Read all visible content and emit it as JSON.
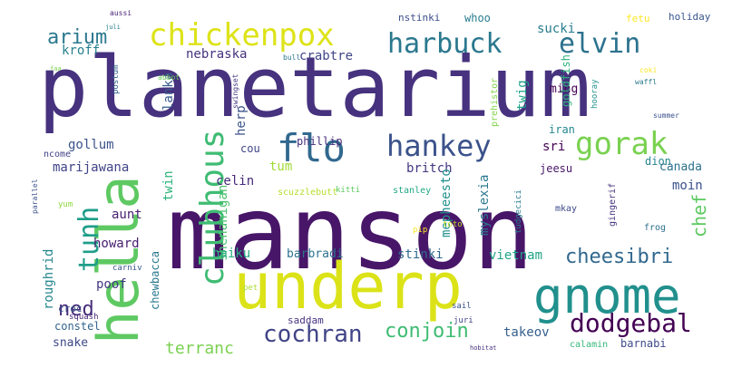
{
  "words": [
    {
      "text": "planetarium",
      "color": "#46327e"
    },
    {
      "text": "manson",
      "color": "#481668"
    },
    {
      "text": "underp",
      "color": "#dbe318"
    },
    {
      "text": "hella",
      "color": "#5ec962"
    },
    {
      "text": "gnome",
      "color": "#21908d"
    },
    {
      "text": "clubhous",
      "color": "#3fbc73"
    },
    {
      "text": "chickenpox",
      "color": "#dde318"
    },
    {
      "text": "harbuck",
      "color": "#2a788e"
    },
    {
      "text": "elvin",
      "color": "#2c728e"
    },
    {
      "text": "hankey",
      "color": "#3b528b"
    },
    {
      "text": "gorak",
      "color": "#7ad151"
    },
    {
      "text": "flo",
      "color": "#31688e"
    },
    {
      "text": "dodgebal",
      "color": "#440154"
    },
    {
      "text": "cochran",
      "color": "#414487"
    },
    {
      "text": "tunh",
      "color": "#1f9e89"
    },
    {
      "text": "arium",
      "color": "#2a788e"
    },
    {
      "text": "conjoin",
      "color": "#3fbc73"
    },
    {
      "text": "cheesibri",
      "color": "#31688e"
    },
    {
      "text": "ned",
      "color": "#472d7b"
    },
    {
      "text": "chef",
      "color": "#5ec962"
    },
    {
      "text": "terranc",
      "color": "#7ad151"
    },
    {
      "text": "kroff",
      "color": "#27808e"
    },
    {
      "text": "nebraska",
      "color": "#46327e"
    },
    {
      "text": "crabtre",
      "color": "#404688"
    },
    {
      "text": "sucki",
      "color": "#287c8e"
    },
    {
      "text": "lanka",
      "color": "#375a8c"
    },
    {
      "text": "herp",
      "color": "#3b528b"
    },
    {
      "text": "twin",
      "color": "#2eb37c"
    },
    {
      "text": "twig",
      "color": "#1fa188"
    },
    {
      "text": "ming",
      "color": "#440154"
    },
    {
      "text": "goldfish",
      "color": "#2db27d"
    },
    {
      "text": "gollum",
      "color": "#3b528b"
    },
    {
      "text": "cou",
      "color": "#404688"
    },
    {
      "text": "tum",
      "color": "#a2da37"
    },
    {
      "text": "phillip",
      "color": "#472d7b"
    },
    {
      "text": "sri",
      "color": "#440154"
    },
    {
      "text": "iran",
      "color": "#24868e"
    },
    {
      "text": "marijawana",
      "color": "#414487"
    },
    {
      "text": "celin",
      "color": "#472a7a"
    },
    {
      "text": "shenanigan",
      "color": "#4ac16d"
    },
    {
      "text": "britch",
      "color": "#453781"
    },
    {
      "text": "mepheesto",
      "color": "#21918c"
    },
    {
      "text": "myslexia",
      "color": "#2a788e"
    },
    {
      "text": "jeesu",
      "color": "#481769"
    },
    {
      "text": "dion",
      "color": "#25848e"
    },
    {
      "text": "canada",
      "color": "#2d718e"
    },
    {
      "text": "moin",
      "color": "#3b518b"
    },
    {
      "text": "aunt",
      "color": "#482173"
    },
    {
      "text": "howard",
      "color": "#482071"
    },
    {
      "text": "haiku",
      "color": "#25ac82"
    },
    {
      "text": "barbradi",
      "color": "#2c728e"
    },
    {
      "text": "stinki",
      "color": "#30698e"
    },
    {
      "text": "vietnam",
      "color": "#20a486"
    },
    {
      "text": "poof",
      "color": "#453882"
    },
    {
      "text": "roughrid",
      "color": "#24868e"
    },
    {
      "text": "chewbacca",
      "color": "#2a778e"
    },
    {
      "text": "constel",
      "color": "#33638d"
    },
    {
      "text": "snake",
      "color": "#3e4989"
    },
    {
      "text": "takeov",
      "color": "#355f8d"
    },
    {
      "text": "barnabi",
      "color": "#3e4a89"
    },
    {
      "text": "saddam",
      "color": "#46337f"
    },
    {
      "text": "calamin",
      "color": "#35b779"
    },
    {
      "text": "croc",
      "color": "#39568c"
    },
    {
      "text": "squash",
      "color": "#482979"
    },
    {
      "text": "whoo",
      "color": "#287d8e"
    },
    {
      "text": "nstinki",
      "color": "#3d4e8a"
    },
    {
      "text": "fetu",
      "color": "#fde725"
    },
    {
      "text": "holiday",
      "color": "#39568c"
    },
    {
      "text": "hooray",
      "color": "#21918c"
    },
    {
      "text": "prehistor",
      "color": "#84d44b"
    },
    {
      "text": "postum",
      "color": "#33628d"
    },
    {
      "text": "bull",
      "color": "#2a788e"
    },
    {
      "text": "ncome",
      "color": "#424186"
    },
    {
      "text": "scuzzlebutt",
      "color": "#b5de2b"
    },
    {
      "text": "kitti",
      "color": "#5ec962"
    },
    {
      "text": "stanley",
      "color": "#22a884"
    },
    {
      "text": "tudgecici",
      "color": "#297b8e"
    },
    {
      "text": "gingerif",
      "color": "#46337f"
    },
    {
      "text": "frog",
      "color": "#2d708e"
    },
    {
      "text": "mkay",
      "color": "#3e4989"
    },
    {
      "text": "toto",
      "color": "#c2df23"
    },
    {
      "text": "pip",
      "color": "#fde725"
    },
    {
      "text": "juri",
      "color": "#414487"
    },
    {
      "text": "sail",
      "color": "#3b528b"
    },
    {
      "text": "hobitat",
      "color": "#46327e"
    },
    {
      "text": "pet",
      "color": "#addc30"
    },
    {
      "text": "carniv",
      "color": "#39568c"
    },
    {
      "text": "yum",
      "color": "#8fd744"
    },
    {
      "text": "swingset",
      "color": "#453882"
    },
    {
      "text": "summer",
      "color": "#3b528b"
    },
    {
      "text": "abbot",
      "color": "#6ccd5a"
    },
    {
      "text": "aussi",
      "color": "#482475"
    },
    {
      "text": "juli",
      "color": "#26828e"
    },
    {
      "text": "waffl",
      "color": "#2a788e"
    },
    {
      "text": "parallel",
      "color": "#3b528b"
    },
    {
      "text": "coki",
      "color": "#fde725"
    },
    {
      "text": "faa",
      "color": "#7ad151"
    }
  ]
}
